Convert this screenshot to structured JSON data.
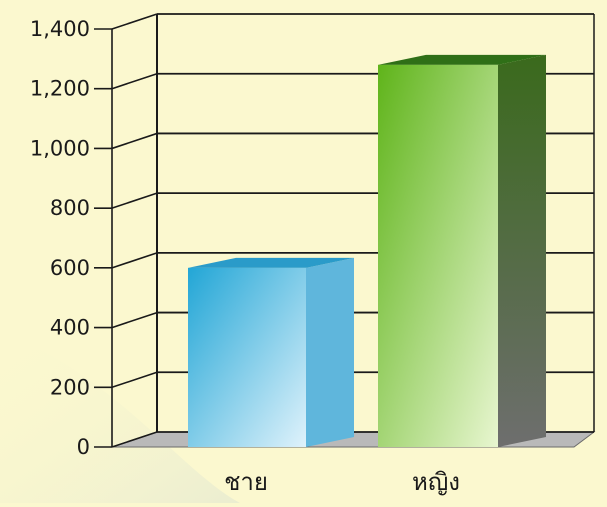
{
  "chart_data": {
    "type": "bar",
    "categories": [
      "ชาย",
      "หญิง"
    ],
    "values": [
      600,
      1280
    ],
    "series": [
      {
        "values": [
          600,
          1280
        ]
      }
    ],
    "ylim": [
      0,
      1400
    ],
    "yticks": [
      0,
      200,
      400,
      600,
      800,
      1000,
      1200,
      1400
    ],
    "ytick_labels": [
      "0",
      "200",
      "400",
      "600",
      "800",
      "1,000",
      "1,200",
      "1,400"
    ],
    "title": "",
    "xlabel": "",
    "ylabel": "",
    "grid": true,
    "legend": "none",
    "colors": {
      "background": "#fbf8cf",
      "grid": "#1a1a1a",
      "bar1_light": "#dff2fb",
      "bar1_dark": "#22a6d6",
      "bar1_side": "#5fb6dc",
      "bar1_top": "#2a9bc9",
      "bar2_light": "#e8f6d0",
      "bar2_dark": "#5fb41a",
      "bar2_side": "#3a6a1c",
      "bar2_top": "#2f6f17",
      "floor": "#b9b9b9"
    }
  }
}
